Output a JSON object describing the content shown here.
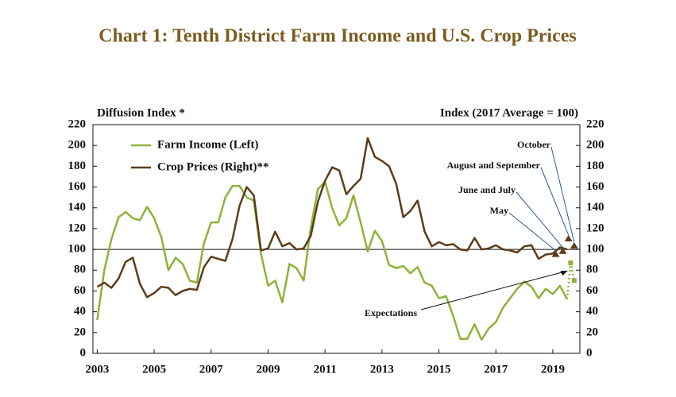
{
  "chart_data": {
    "type": "line",
    "title": "Chart 1: Tenth District Farm Income and U.S. Crop Prices",
    "y_label": "Diffusion Index *",
    "y2_label": "Index (2017 Average = 100)",
    "xlim": [
      2002.85,
      2019.95
    ],
    "xticks": [
      2003,
      2005,
      2007,
      2009,
      2011,
      2013,
      2015,
      2017,
      2019
    ],
    "ylim": [
      0,
      220
    ],
    "yticks": [
      0,
      20,
      40,
      60,
      80,
      100,
      120,
      140,
      160,
      180,
      200,
      220
    ],
    "y2lim": [
      0,
      220
    ],
    "y2ticks": [
      0,
      20,
      40,
      60,
      80,
      100,
      120,
      140,
      160,
      180,
      200,
      220
    ],
    "reference_line": 100,
    "x": [
      2003,
      2003.25,
      2003.5,
      2003.75,
      2004,
      2004.25,
      2004.5,
      2004.75,
      2005,
      2005.25,
      2005.5,
      2005.75,
      2006,
      2006.25,
      2006.5,
      2006.75,
      2007,
      2007.25,
      2007.5,
      2007.75,
      2008,
      2008.25,
      2008.5,
      2008.75,
      2009,
      2009.25,
      2009.5,
      2009.75,
      2010,
      2010.25,
      2010.5,
      2010.75,
      2011,
      2011.25,
      2011.5,
      2011.75,
      2012,
      2012.25,
      2012.5,
      2012.75,
      2013,
      2013.25,
      2013.5,
      2013.75,
      2014,
      2014.25,
      2014.5,
      2014.75,
      2015,
      2015.25,
      2015.5,
      2015.75,
      2016,
      2016.25,
      2016.5,
      2016.75,
      2017,
      2017.25,
      2017.5,
      2017.75,
      2018,
      2018.25,
      2018.5,
      2018.75,
      2019,
      2019.25,
      2019.5
    ],
    "series": [
      {
        "name": "Farm Income (Left)",
        "color": "#8db33a",
        "values": [
          32,
          80,
          110,
          131,
          136,
          130,
          128,
          141,
          130,
          112,
          80,
          92,
          86,
          70,
          68,
          106,
          126,
          126,
          150,
          161,
          161,
          150,
          147,
          96,
          65,
          70,
          49,
          86,
          82,
          70,
          121,
          158,
          165,
          140,
          123,
          130,
          152,
          126,
          98,
          118,
          108,
          85,
          82,
          84,
          77,
          83,
          68,
          65,
          53,
          55,
          36,
          14,
          14,
          28,
          13,
          24,
          30,
          44,
          53,
          62,
          69,
          64,
          53,
          62,
          57,
          65,
          52
        ]
      },
      {
        "name": "Crop Prices (Right)**",
        "color": "#5c3d1a",
        "axis": "y2",
        "values": [
          64,
          68,
          63,
          72,
          88,
          92,
          67,
          54,
          58,
          64,
          63,
          56,
          60,
          62,
          61,
          83,
          93,
          91,
          89,
          110,
          142,
          160,
          152,
          99,
          101,
          117,
          103,
          106,
          100,
          101,
          113,
          146,
          166,
          179,
          176,
          153,
          161,
          168,
          207,
          189,
          185,
          180,
          163,
          131,
          137,
          147,
          117,
          103,
          107,
          104,
          105,
          100,
          99,
          111,
          100,
          101,
          104,
          100,
          99,
          97,
          103,
          104,
          91,
          95,
          96,
          102,
          100
        ]
      }
    ],
    "farm_expectations": {
      "label": "Expectations",
      "x": [
        2019.5,
        2019.625,
        2019.75
      ],
      "values": [
        52,
        87,
        70
      ]
    },
    "crop_expectations": {
      "labels": [
        "May",
        "June and July",
        "August and September",
        "October"
      ],
      "x": [
        2019.1,
        2019.35,
        2019.55,
        2019.75
      ],
      "values": [
        95,
        98,
        110,
        103
      ]
    },
    "legend": "upper left"
  }
}
